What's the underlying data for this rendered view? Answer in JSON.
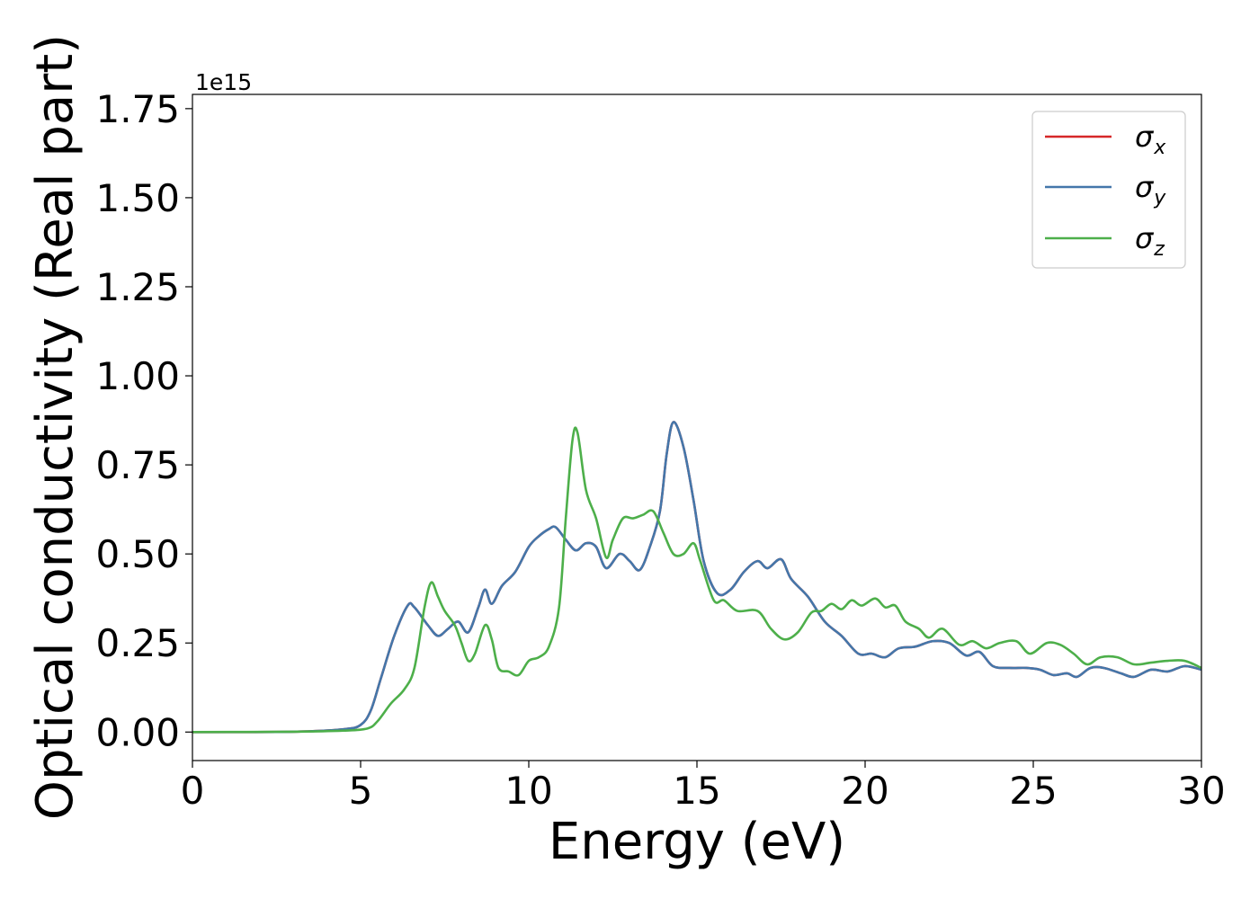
{
  "chart_data": {
    "type": "line",
    "xlabel": "Energy (eV)",
    "ylabel": "Optical conductivity (Real part)",
    "offset_text": "1e15",
    "xlim": [
      0,
      30
    ],
    "ylim": [
      -0.08,
      1.79
    ],
    "xticks": [
      0,
      5,
      10,
      15,
      20,
      25,
      30
    ],
    "xtick_labels": [
      "0",
      "5",
      "10",
      "15",
      "20",
      "25",
      "30"
    ],
    "yticks": [
      0.0,
      0.25,
      0.5,
      0.75,
      1.0,
      1.25,
      1.5,
      1.75
    ],
    "ytick_labels": [
      "0.00",
      "0.25",
      "0.50",
      "0.75",
      "1.00",
      "1.25",
      "1.50",
      "1.75"
    ],
    "grid": false,
    "legend_position": "top-right",
    "colors": {
      "sigma_x": "#d62728",
      "sigma_y": "#4477aa",
      "sigma_z": "#4daf4a"
    },
    "series": [
      {
        "name": "σx",
        "legend_symbol": "σ",
        "legend_sub": "x",
        "color": "#d62728",
        "points": [
          [
            0,
            0
          ],
          [
            3,
            0.001
          ],
          [
            4.5,
            0.008
          ],
          [
            5,
            0.02
          ],
          [
            5.3,
            0.06
          ],
          [
            5.6,
            0.15
          ],
          [
            6,
            0.27
          ],
          [
            6.4,
            0.355
          ],
          [
            6.6,
            0.35
          ],
          [
            7,
            0.3
          ],
          [
            7.3,
            0.27
          ],
          [
            7.6,
            0.29
          ],
          [
            7.9,
            0.31
          ],
          [
            8.2,
            0.28
          ],
          [
            8.5,
            0.35
          ],
          [
            8.7,
            0.4
          ],
          [
            8.9,
            0.36
          ],
          [
            9.2,
            0.41
          ],
          [
            9.6,
            0.45
          ],
          [
            10,
            0.52
          ],
          [
            10.3,
            0.55
          ],
          [
            10.6,
            0.57
          ],
          [
            10.8,
            0.575
          ],
          [
            11.1,
            0.54
          ],
          [
            11.4,
            0.51
          ],
          [
            11.7,
            0.53
          ],
          [
            12,
            0.52
          ],
          [
            12.3,
            0.46
          ],
          [
            12.7,
            0.5
          ],
          [
            13,
            0.48
          ],
          [
            13.3,
            0.455
          ],
          [
            13.6,
            0.52
          ],
          [
            13.9,
            0.62
          ],
          [
            14.1,
            0.78
          ],
          [
            14.3,
            0.87
          ],
          [
            14.6,
            0.8
          ],
          [
            14.9,
            0.65
          ],
          [
            15.2,
            0.48
          ],
          [
            15.6,
            0.39
          ],
          [
            16,
            0.4
          ],
          [
            16.4,
            0.45
          ],
          [
            16.8,
            0.48
          ],
          [
            17.1,
            0.46
          ],
          [
            17.5,
            0.485
          ],
          [
            17.8,
            0.43
          ],
          [
            18.3,
            0.38
          ],
          [
            18.8,
            0.31
          ],
          [
            19.3,
            0.27
          ],
          [
            19.8,
            0.22
          ],
          [
            20.2,
            0.22
          ],
          [
            20.6,
            0.21
          ],
          [
            21,
            0.235
          ],
          [
            21.5,
            0.24
          ],
          [
            22,
            0.255
          ],
          [
            22.5,
            0.25
          ],
          [
            23,
            0.215
          ],
          [
            23.4,
            0.225
          ],
          [
            23.8,
            0.185
          ],
          [
            24.3,
            0.18
          ],
          [
            24.8,
            0.18
          ],
          [
            25.2,
            0.175
          ],
          [
            25.6,
            0.16
          ],
          [
            26,
            0.165
          ],
          [
            26.3,
            0.155
          ],
          [
            26.7,
            0.18
          ],
          [
            27.1,
            0.18
          ],
          [
            27.6,
            0.165
          ],
          [
            28,
            0.155
          ],
          [
            28.5,
            0.175
          ],
          [
            29,
            0.17
          ],
          [
            29.5,
            0.185
          ],
          [
            30,
            0.175
          ]
        ]
      },
      {
        "name": "σy",
        "legend_symbol": "σ",
        "legend_sub": "y",
        "color": "#4477aa",
        "points": [
          [
            0,
            0
          ],
          [
            3,
            0.001
          ],
          [
            4.5,
            0.008
          ],
          [
            5,
            0.02
          ],
          [
            5.3,
            0.06
          ],
          [
            5.6,
            0.15
          ],
          [
            6,
            0.27
          ],
          [
            6.4,
            0.355
          ],
          [
            6.6,
            0.35
          ],
          [
            7,
            0.3
          ],
          [
            7.3,
            0.27
          ],
          [
            7.6,
            0.29
          ],
          [
            7.9,
            0.31
          ],
          [
            8.2,
            0.28
          ],
          [
            8.5,
            0.35
          ],
          [
            8.7,
            0.4
          ],
          [
            8.9,
            0.36
          ],
          [
            9.2,
            0.41
          ],
          [
            9.6,
            0.45
          ],
          [
            10,
            0.52
          ],
          [
            10.3,
            0.55
          ],
          [
            10.6,
            0.57
          ],
          [
            10.8,
            0.575
          ],
          [
            11.1,
            0.54
          ],
          [
            11.4,
            0.51
          ],
          [
            11.7,
            0.53
          ],
          [
            12,
            0.52
          ],
          [
            12.3,
            0.46
          ],
          [
            12.7,
            0.5
          ],
          [
            13,
            0.48
          ],
          [
            13.3,
            0.455
          ],
          [
            13.6,
            0.52
          ],
          [
            13.9,
            0.62
          ],
          [
            14.1,
            0.78
          ],
          [
            14.3,
            0.87
          ],
          [
            14.6,
            0.8
          ],
          [
            14.9,
            0.65
          ],
          [
            15.2,
            0.48
          ],
          [
            15.6,
            0.39
          ],
          [
            16,
            0.4
          ],
          [
            16.4,
            0.45
          ],
          [
            16.8,
            0.48
          ],
          [
            17.1,
            0.46
          ],
          [
            17.5,
            0.485
          ],
          [
            17.8,
            0.43
          ],
          [
            18.3,
            0.38
          ],
          [
            18.8,
            0.31
          ],
          [
            19.3,
            0.27
          ],
          [
            19.8,
            0.22
          ],
          [
            20.2,
            0.22
          ],
          [
            20.6,
            0.21
          ],
          [
            21,
            0.235
          ],
          [
            21.5,
            0.24
          ],
          [
            22,
            0.255
          ],
          [
            22.5,
            0.25
          ],
          [
            23,
            0.215
          ],
          [
            23.4,
            0.225
          ],
          [
            23.8,
            0.185
          ],
          [
            24.3,
            0.18
          ],
          [
            24.8,
            0.18
          ],
          [
            25.2,
            0.175
          ],
          [
            25.6,
            0.16
          ],
          [
            26,
            0.165
          ],
          [
            26.3,
            0.155
          ],
          [
            26.7,
            0.18
          ],
          [
            27.1,
            0.18
          ],
          [
            27.6,
            0.165
          ],
          [
            28,
            0.155
          ],
          [
            28.5,
            0.175
          ],
          [
            29,
            0.17
          ],
          [
            29.5,
            0.185
          ],
          [
            30,
            0.175
          ]
        ]
      },
      {
        "name": "σz",
        "legend_symbol": "σ",
        "legend_sub": "z",
        "color": "#4daf4a",
        "points": [
          [
            0,
            0
          ],
          [
            3,
            0.001
          ],
          [
            4.5,
            0.004
          ],
          [
            5.2,
            0.01
          ],
          [
            5.5,
            0.03
          ],
          [
            5.9,
            0.08
          ],
          [
            6.3,
            0.12
          ],
          [
            6.6,
            0.18
          ],
          [
            6.9,
            0.35
          ],
          [
            7.1,
            0.42
          ],
          [
            7.3,
            0.38
          ],
          [
            7.5,
            0.34
          ],
          [
            7.8,
            0.3
          ],
          [
            8,
            0.25
          ],
          [
            8.2,
            0.2
          ],
          [
            8.4,
            0.22
          ],
          [
            8.7,
            0.3
          ],
          [
            8.9,
            0.26
          ],
          [
            9.1,
            0.18
          ],
          [
            9.4,
            0.17
          ],
          [
            9.7,
            0.16
          ],
          [
            10,
            0.2
          ],
          [
            10.3,
            0.21
          ],
          [
            10.6,
            0.24
          ],
          [
            10.9,
            0.35
          ],
          [
            11.1,
            0.6
          ],
          [
            11.3,
            0.82
          ],
          [
            11.45,
            0.84
          ],
          [
            11.7,
            0.68
          ],
          [
            12,
            0.6
          ],
          [
            12.3,
            0.49
          ],
          [
            12.5,
            0.54
          ],
          [
            12.8,
            0.6
          ],
          [
            13.1,
            0.6
          ],
          [
            13.4,
            0.61
          ],
          [
            13.7,
            0.62
          ],
          [
            14,
            0.56
          ],
          [
            14.3,
            0.5
          ],
          [
            14.6,
            0.5
          ],
          [
            14.9,
            0.53
          ],
          [
            15.1,
            0.48
          ],
          [
            15.5,
            0.37
          ],
          [
            15.8,
            0.37
          ],
          [
            16.2,
            0.34
          ],
          [
            16.8,
            0.34
          ],
          [
            17.2,
            0.29
          ],
          [
            17.6,
            0.26
          ],
          [
            18,
            0.28
          ],
          [
            18.4,
            0.335
          ],
          [
            18.7,
            0.34
          ],
          [
            19,
            0.36
          ],
          [
            19.3,
            0.345
          ],
          [
            19.6,
            0.37
          ],
          [
            19.9,
            0.355
          ],
          [
            20.3,
            0.375
          ],
          [
            20.6,
            0.35
          ],
          [
            20.9,
            0.355
          ],
          [
            21.2,
            0.31
          ],
          [
            21.6,
            0.29
          ],
          [
            21.9,
            0.265
          ],
          [
            22.3,
            0.29
          ],
          [
            22.8,
            0.245
          ],
          [
            23.2,
            0.255
          ],
          [
            23.6,
            0.235
          ],
          [
            24,
            0.25
          ],
          [
            24.5,
            0.255
          ],
          [
            24.9,
            0.22
          ],
          [
            25.4,
            0.25
          ],
          [
            25.8,
            0.245
          ],
          [
            26.2,
            0.22
          ],
          [
            26.6,
            0.19
          ],
          [
            27,
            0.21
          ],
          [
            27.5,
            0.21
          ],
          [
            28,
            0.19
          ],
          [
            28.5,
            0.195
          ],
          [
            29,
            0.2
          ],
          [
            29.5,
            0.2
          ],
          [
            30,
            0.18
          ]
        ]
      }
    ]
  }
}
